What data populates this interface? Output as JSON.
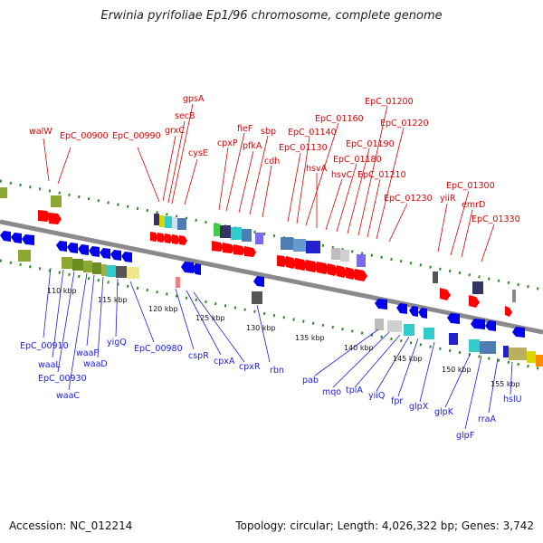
{
  "title": "Erwinia pyrifoliae Ep1/96 chromosome, complete genome",
  "accession": "Accession: NC_012214",
  "topology": "Topology: circular; Length: 4,026,322 bp; Genes: 3,742",
  "colors": {
    "forward": "#ff0000",
    "reverse": "#0000ee",
    "backbone": "#888888",
    "ticks": "#2a8a2a"
  },
  "top_labels": [
    "walW",
    "EpC_00900",
    "EpC_00990",
    "gpsA",
    "secB",
    "grxC",
    "cysE",
    "fieF",
    "cpxP",
    "pfkA",
    "sbp",
    "cdh",
    "EpC_01130",
    "EpC_01140",
    "EpC_01160",
    "hsvA",
    "hsvC",
    "EpC_01180",
    "EpC_01190",
    "EpC_01200",
    "EpC_01210",
    "EpC_01220",
    "EpC_01230",
    "yiiR",
    "EpC_01300",
    "emrD",
    "EpC_01330"
  ],
  "bottom_labels": [
    "EpC_00910",
    "waaL",
    "EpC_00930",
    "waaC",
    "waaF",
    "waaD",
    "yigQ",
    "EpC_00980",
    "cspR",
    "cpxA",
    "cpxR",
    "rbn",
    "pab",
    "mqo",
    "tpiA",
    "yiiQ",
    "fpr",
    "glpX",
    "glpK",
    "glpF",
    "rraA",
    "hslU"
  ],
  "scale_labels": [
    "110 kbp",
    "115 kbp",
    "120 kbp",
    "125 kbp",
    "130 kbp",
    "135 kbp",
    "140 kbp",
    "145 kbp",
    "150 kbp",
    "155 kbp"
  ]
}
